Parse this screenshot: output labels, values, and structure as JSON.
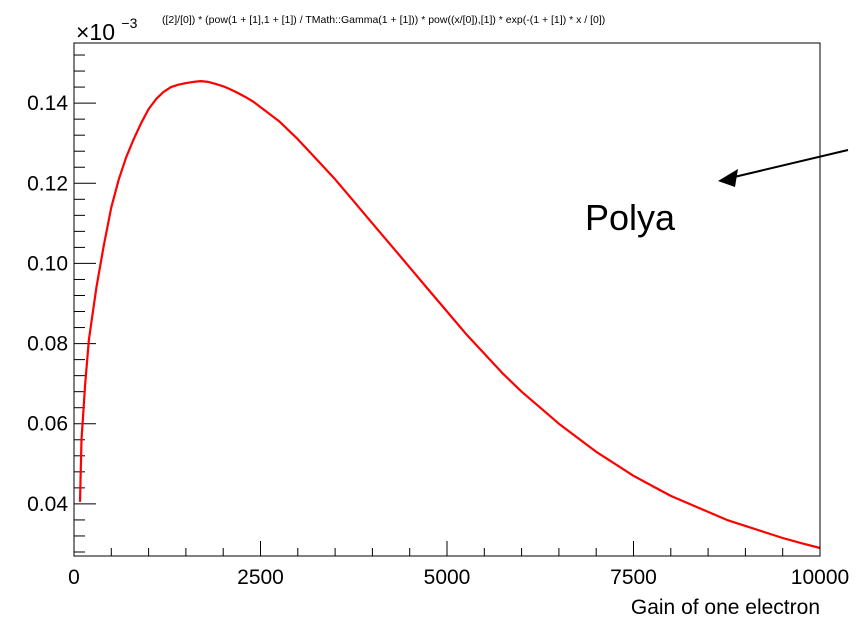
{
  "chart_data": {
    "type": "line",
    "title": "([2]/[0]) * (pow(1 + [1],1 + [1]) / TMath::Gamma(1 + [1])) * pow((x/[0]),[1]) * exp(-(1 + [1]) * x / [0])",
    "xlabel": "Gain of one electron",
    "ylabel": "",
    "y_multiplier_base": "×10",
    "y_multiplier_exp": "−3",
    "xlim": [
      0,
      10000
    ],
    "ylim": [
      0.027,
      0.155
    ],
    "x_ticks": [
      0,
      2500,
      5000,
      7500,
      10000
    ],
    "x_tick_labels": [
      "0",
      "2500",
      "5000",
      "7500",
      "10000"
    ],
    "y_ticks": [
      0.04,
      0.06,
      0.08,
      0.1,
      0.12,
      0.14
    ],
    "y_tick_labels": [
      "0.04",
      "0.06",
      "0.08",
      "0.10",
      "0.12",
      "0.14"
    ],
    "grid": false,
    "series": [
      {
        "color": "#ff0000",
        "x": [
          80,
          100,
          150,
          200,
          300,
          400,
          500,
          600,
          700,
          800,
          900,
          1000,
          1100,
          1200,
          1300,
          1400,
          1500,
          1600,
          1700,
          1800,
          1900,
          2000,
          2100,
          2200,
          2300,
          2400,
          2500,
          2750,
          3000,
          3250,
          3500,
          3750,
          4000,
          4250,
          4500,
          4750,
          5000,
          5250,
          5500,
          5750,
          6000,
          6250,
          6500,
          6750,
          7000,
          7250,
          7500,
          7750,
          8000,
          8250,
          8500,
          8750,
          9000,
          9250,
          9500,
          9750,
          10000
        ],
        "values": [
          0.0405,
          0.056,
          0.07,
          0.081,
          0.094,
          0.1045,
          0.114,
          0.121,
          0.1265,
          0.131,
          0.135,
          0.1385,
          0.141,
          0.1428,
          0.144,
          0.1446,
          0.145,
          0.1453,
          0.1455,
          0.1453,
          0.1448,
          0.1442,
          0.1434,
          0.1425,
          0.1415,
          0.1404,
          0.139,
          0.1355,
          0.131,
          0.126,
          0.121,
          0.1155,
          0.11,
          0.1045,
          0.099,
          0.0935,
          0.088,
          0.0825,
          0.0775,
          0.0725,
          0.068,
          0.064,
          0.06,
          0.0565,
          0.053,
          0.05,
          0.047,
          0.0445,
          0.042,
          0.04,
          0.038,
          0.036,
          0.0345,
          0.033,
          0.0315,
          0.0302,
          0.029
        ]
      }
    ],
    "annotations": [
      {
        "text": "Polya",
        "arrow": true
      }
    ]
  }
}
